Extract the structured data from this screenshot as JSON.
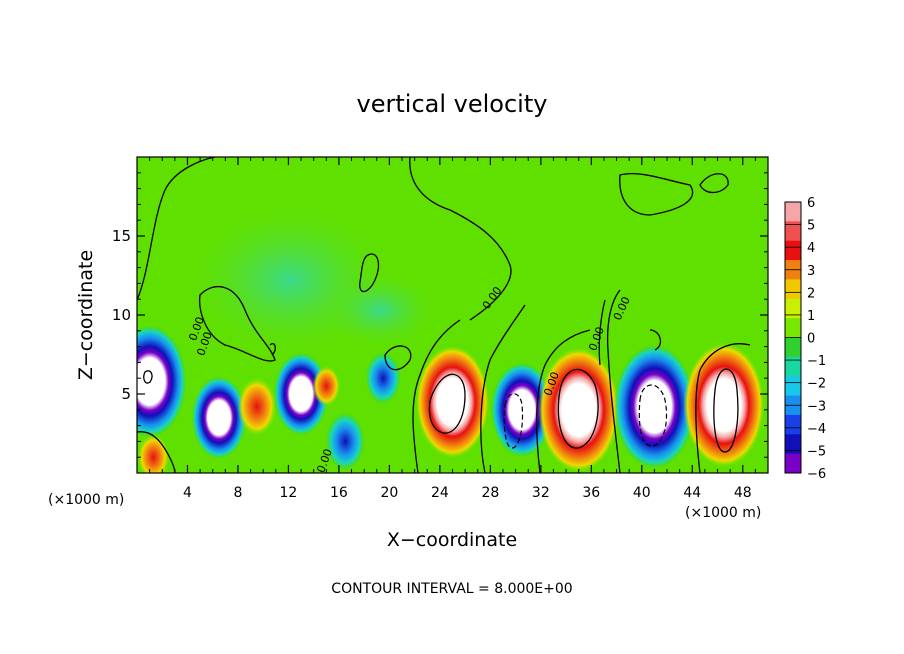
{
  "chart_data": {
    "type": "heatmap",
    "title": "vertical velocity",
    "xlabel": "X−coordinate",
    "ylabel": "Z−coordinate",
    "x_unit_left": "(×1000 m)",
    "x_unit_right": "(×1000 m)",
    "xlim": [
      0,
      50
    ],
    "ylim": [
      0,
      20
    ],
    "x_ticks": [
      4,
      8,
      12,
      16,
      20,
      24,
      28,
      32,
      36,
      40,
      44,
      48
    ],
    "y_ticks": [
      5,
      10,
      15
    ],
    "colorbar": {
      "labels": [
        "6",
        "5",
        "4",
        "3",
        "2",
        "1",
        "0",
        "−1",
        "−2",
        "−3",
        "−4",
        "−5",
        "−6"
      ],
      "colors": [
        "#f6a6a6",
        "#f05050",
        "#e81010",
        "#f08010",
        "#f0c800",
        "#c8f000",
        "#78e800",
        "#30d030",
        "#18d8a0",
        "#18c8e8",
        "#1890f0",
        "#1840e8",
        "#1010b8",
        "#7a00c8"
      ]
    },
    "contour_labels": [
      "0.00",
      "0.00",
      "0.00",
      "0.00",
      "0.00",
      "0.00",
      "0.00"
    ],
    "cells": [
      {
        "x": 1.0,
        "z": 5.8,
        "w": -14
      },
      {
        "x": 1.3,
        "z": 1.0,
        "w": 3
      },
      {
        "x": 6.5,
        "z": 3.5,
        "w": -9
      },
      {
        "x": 9.5,
        "z": 4.2,
        "w": 5
      },
      {
        "x": 13.0,
        "z": 5.0,
        "w": -9
      },
      {
        "x": 15.0,
        "z": 5.5,
        "w": 2
      },
      {
        "x": 16.5,
        "z": 2.0,
        "w": -5
      },
      {
        "x": 19.5,
        "z": 6.0,
        "w": -4
      },
      {
        "x": 25.0,
        "z": 4.5,
        "w": 14
      },
      {
        "x": 30.5,
        "z": 4.0,
        "w": -11
      },
      {
        "x": 35.0,
        "z": 4.0,
        "w": 16
      },
      {
        "x": 41.0,
        "z": 4.2,
        "w": -16
      },
      {
        "x": 46.5,
        "z": 4.3,
        "w": 16
      }
    ],
    "contour_interval_label": "CONTOUR INTERVAL = 8.000E+00"
  }
}
